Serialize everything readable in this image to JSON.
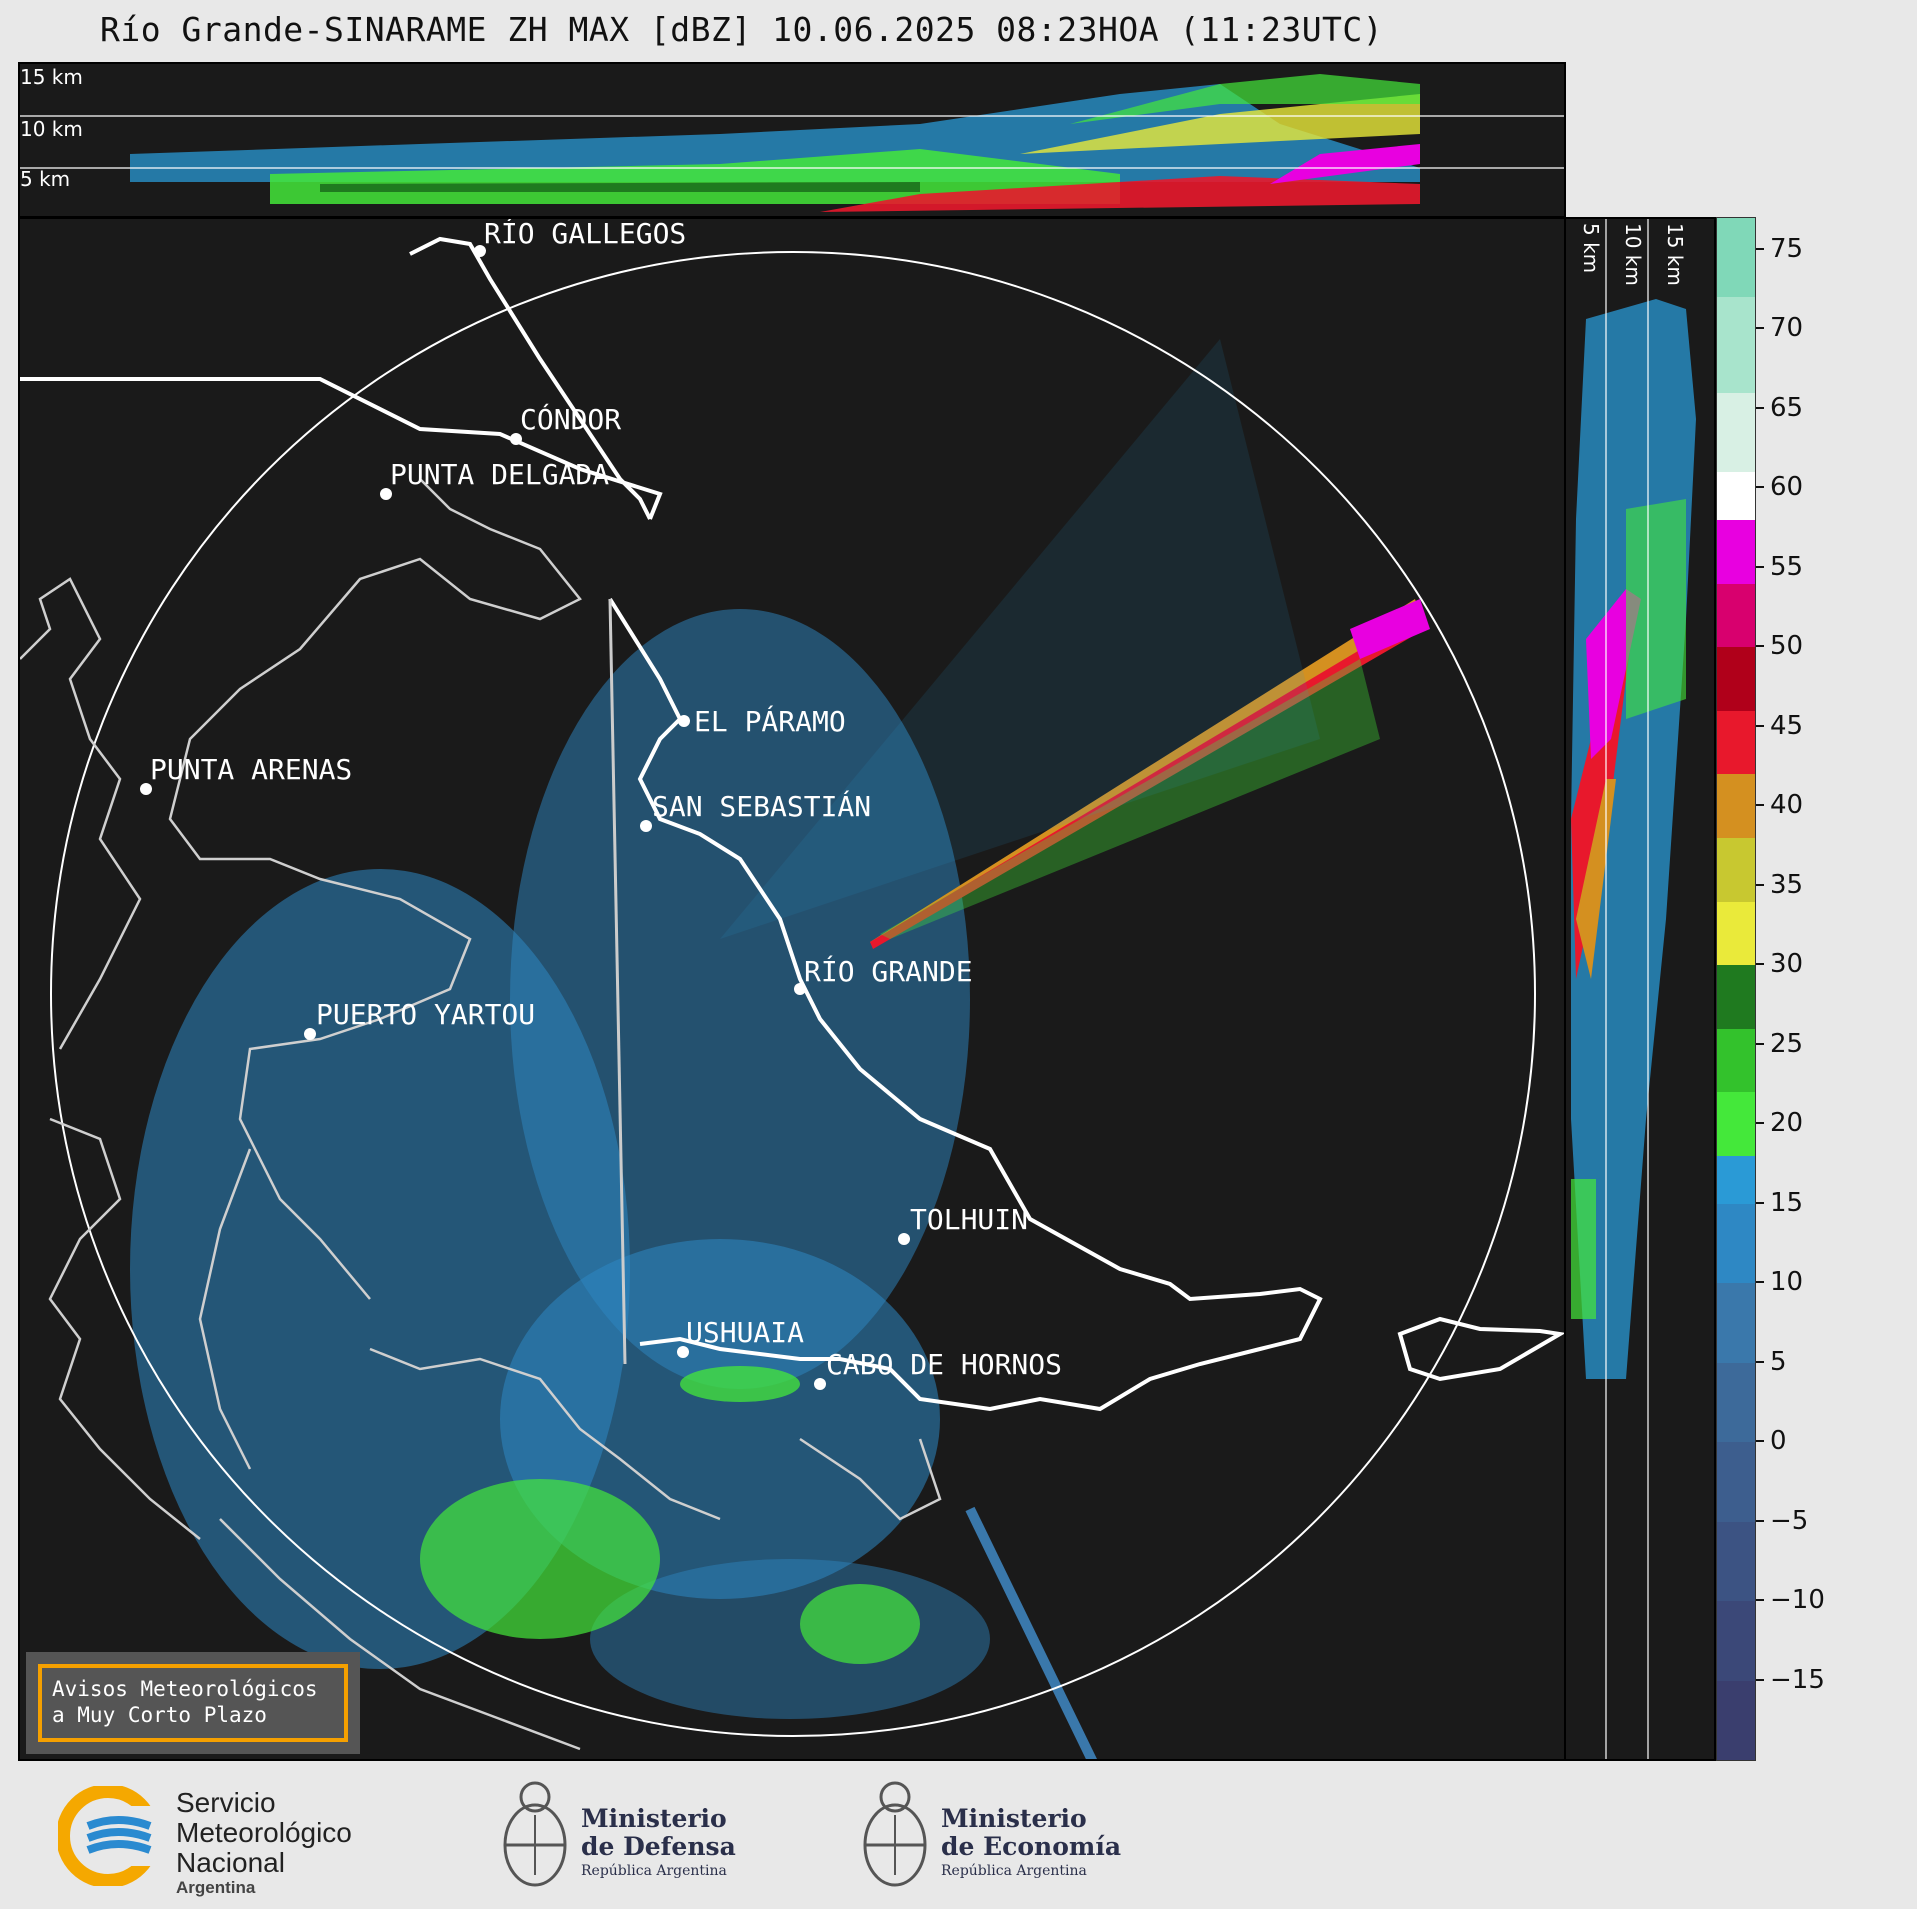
{
  "title": "Río Grande-SINARAME ZH MAX [dBZ] 10.06.2025 08:23HOA (11:23UTC)",
  "top_section": {
    "height_labels": [
      "15 km",
      "10 km",
      "5 km"
    ]
  },
  "side_section": {
    "height_labels": [
      "5 km",
      "10 km",
      "15 km"
    ]
  },
  "map": {
    "places": [
      {
        "name": "RÍO GALLEGOS"
      },
      {
        "name": "CÓNDOR"
      },
      {
        "name": "PUNTA DELGADA"
      },
      {
        "name": "EL PÁRAMO"
      },
      {
        "name": "PUNTA ARENAS"
      },
      {
        "name": "SAN SEBASTIÁN"
      },
      {
        "name": "RÍO GRANDE"
      },
      {
        "name": "PUERTO YARTOU"
      },
      {
        "name": "TOLHUIN"
      },
      {
        "name": "USHUAIA"
      },
      {
        "name": "CABO DE HORNOS"
      }
    ],
    "coastline_color": "#ffffff",
    "background_color": "#1a1a1a"
  },
  "colorbar": {
    "unit": "dBZ",
    "ticks": [
      "75",
      "70",
      "65",
      "60",
      "55",
      "50",
      "45",
      "40",
      "35",
      "30",
      "25",
      "20",
      "15",
      "10",
      "5",
      "0",
      "−5",
      "−10",
      "−15"
    ],
    "range": [
      -20,
      77
    ],
    "bands": [
      {
        "from": -20,
        "to": -15,
        "color": "#3a3e6e"
      },
      {
        "from": -15,
        "to": -10,
        "color": "#3b4878"
      },
      {
        "from": -10,
        "to": -5,
        "color": "#3c5383"
      },
      {
        "from": -5,
        "to": 0,
        "color": "#3d5e8e"
      },
      {
        "from": 0,
        "to": 5,
        "color": "#3d6a9a"
      },
      {
        "from": 5,
        "to": 10,
        "color": "#3a78ab"
      },
      {
        "from": 10,
        "to": 15,
        "color": "#2e88c4"
      },
      {
        "from": 15,
        "to": 18,
        "color": "#2a9ad6"
      },
      {
        "from": 18,
        "to": 22,
        "color": "#44e83a"
      },
      {
        "from": 22,
        "to": 26,
        "color": "#33c22c"
      },
      {
        "from": 26,
        "to": 30,
        "color": "#1f7a1f"
      },
      {
        "from": 30,
        "to": 34,
        "color": "#eaea3a"
      },
      {
        "from": 34,
        "to": 38,
        "color": "#c8c830"
      },
      {
        "from": 38,
        "to": 42,
        "color": "#d49020"
      },
      {
        "from": 42,
        "to": 46,
        "color": "#e8182c"
      },
      {
        "from": 46,
        "to": 50,
        "color": "#b0001a"
      },
      {
        "from": 50,
        "to": 54,
        "color": "#d8006e"
      },
      {
        "from": 54,
        "to": 58,
        "color": "#e800e0"
      },
      {
        "from": 58,
        "to": 61,
        "color": "#ffffff"
      },
      {
        "from": 61,
        "to": 66,
        "color": "#d8f0e4"
      },
      {
        "from": 66,
        "to": 72,
        "color": "#a8e4cc"
      },
      {
        "from": 72,
        "to": 77,
        "color": "#80d8b8"
      }
    ]
  },
  "aviso": {
    "line1": "Avisos Meteorológicos",
    "line2": "a Muy Corto Plazo"
  },
  "logos": {
    "smn": {
      "line1": "Servicio",
      "line2": "Meteorológico",
      "line3": "Nacional",
      "line4": "Argentina"
    },
    "defensa": {
      "line1": "Ministerio",
      "line2": "de Defensa",
      "line3": "República Argentina"
    },
    "economia": {
      "line1": "Ministerio",
      "line2": "de Economía",
      "line3": "República Argentina"
    }
  }
}
